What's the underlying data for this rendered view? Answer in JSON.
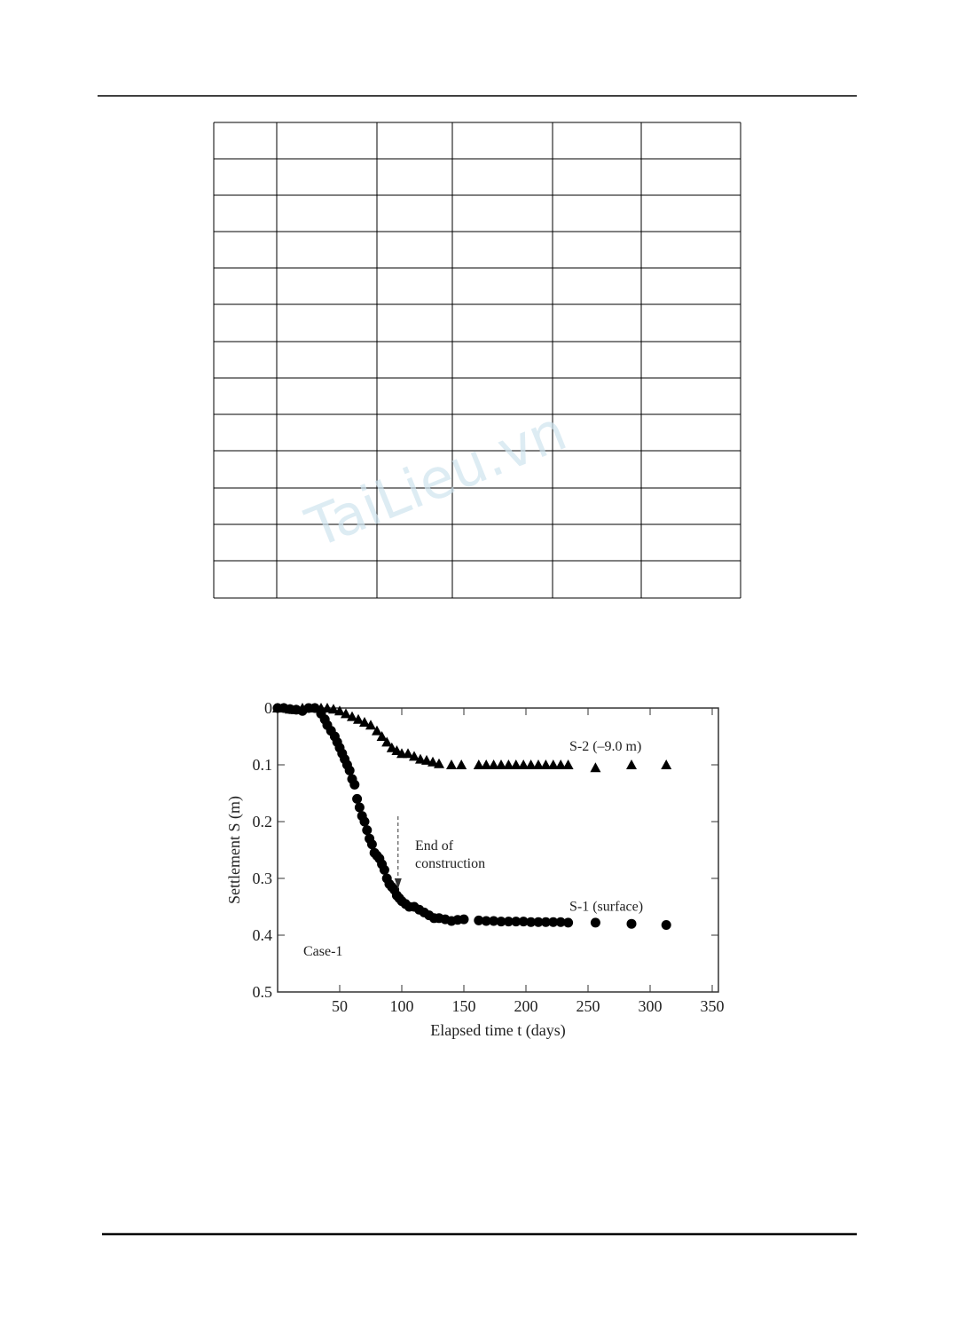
{
  "watermark": "TaiLieu.vn",
  "chart_data": {
    "type": "scatter",
    "x_label": "Elapsed time t (days)",
    "y_label": "Settlement S (m)",
    "xlim": [
      0,
      355
    ],
    "ylim": [
      0,
      0.5
    ],
    "y_inverted": true,
    "xticks": [
      50,
      100,
      150,
      200,
      250,
      300,
      350
    ],
    "yticks": [
      0,
      0.1,
      0.2,
      0.3,
      0.4,
      0.5
    ],
    "annotations": {
      "construction": [
        "End of",
        "construction"
      ],
      "case": "Case-1",
      "construction_x": 97
    },
    "series": [
      {
        "name": "S-1 (surface)",
        "marker": "circle",
        "color": "#000000",
        "x": [
          0,
          5,
          10,
          15,
          20,
          25,
          30,
          35,
          38,
          40,
          43,
          46,
          48,
          50,
          52,
          54,
          56,
          58,
          60,
          62,
          64,
          66,
          68,
          70,
          72,
          74,
          76,
          78,
          80,
          82,
          84,
          86,
          88,
          90,
          92,
          94,
          96,
          98,
          100,
          103,
          106,
          110,
          114,
          118,
          122,
          126,
          130,
          135,
          140,
          145,
          150,
          162,
          168,
          174,
          180,
          186,
          192,
          198,
          204,
          210,
          216,
          222,
          228,
          234,
          256,
          285,
          313
        ],
        "values": [
          0,
          0,
          0.002,
          0.003,
          0.005,
          0,
          0,
          0.01,
          0.02,
          0.03,
          0.04,
          0.05,
          0.06,
          0.07,
          0.08,
          0.09,
          0.1,
          0.11,
          0.125,
          0.135,
          0.16,
          0.175,
          0.19,
          0.2,
          0.215,
          0.23,
          0.24,
          0.255,
          0.26,
          0.265,
          0.275,
          0.285,
          0.3,
          0.31,
          0.315,
          0.32,
          0.33,
          0.335,
          0.34,
          0.345,
          0.35,
          0.35,
          0.355,
          0.36,
          0.365,
          0.37,
          0.37,
          0.372,
          0.375,
          0.373,
          0.372,
          0.374,
          0.375,
          0.375,
          0.376,
          0.376,
          0.376,
          0.376,
          0.377,
          0.377,
          0.377,
          0.377,
          0.377,
          0.378,
          0.378,
          0.38,
          0.382
        ]
      },
      {
        "name": "S-2 (–9.0 m)",
        "marker": "triangle",
        "color": "#000000",
        "x": [
          0,
          5,
          10,
          15,
          20,
          30,
          35,
          40,
          45,
          50,
          55,
          60,
          65,
          70,
          75,
          80,
          84,
          88,
          92,
          96,
          100,
          105,
          110,
          115,
          120,
          125,
          130,
          140,
          148,
          162,
          168,
          174,
          180,
          186,
          192,
          198,
          204,
          210,
          216,
          222,
          228,
          234,
          256,
          285,
          313
        ],
        "values": [
          0,
          0,
          0.002,
          0.003,
          0,
          0,
          0,
          0,
          0.002,
          0.005,
          0.01,
          0.015,
          0.02,
          0.025,
          0.03,
          0.04,
          0.05,
          0.06,
          0.07,
          0.075,
          0.08,
          0.08,
          0.085,
          0.09,
          0.092,
          0.095,
          0.098,
          0.1,
          0.1,
          0.1,
          0.1,
          0.1,
          0.1,
          0.1,
          0.1,
          0.1,
          0.1,
          0.1,
          0.1,
          0.1,
          0.1,
          0.1,
          0.105,
          0.1,
          0.1
        ]
      }
    ]
  }
}
